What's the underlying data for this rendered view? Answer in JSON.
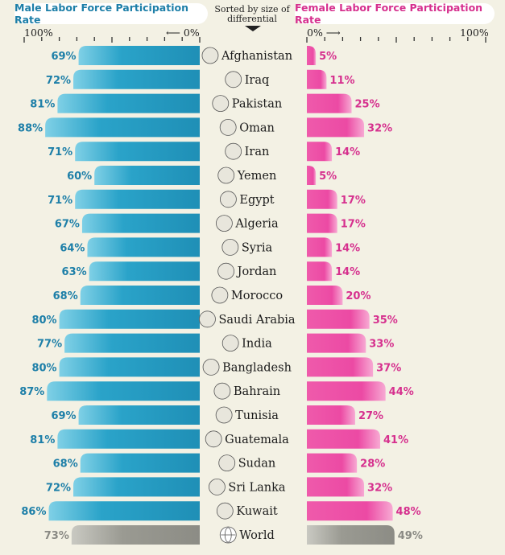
{
  "header": {
    "male_title": "Male Labor Force Participation Rate",
    "female_title": "Female Labor Force Participation Rate",
    "sort_note_line1": "Sorted by size of",
    "sort_note_line2": "differential"
  },
  "axes": {
    "male_max_label": "100%",
    "male_zero_label": "⟵ 0%",
    "female_zero_label": "0% ⟶",
    "female_max_label": "100%"
  },
  "colors": {
    "male_bar": "#2aa3c9",
    "male_bar_light": "#7fd0e6",
    "female_bar": "#ec4aa4",
    "female_bar_light": "#f7a9d3",
    "world_bar": "#9a9a92",
    "male_text": "#1d7fa8",
    "female_text": "#d6308e",
    "world_text": "#8a8a84"
  },
  "chart_data": {
    "type": "bar",
    "layout": "butterfly",
    "categories": [
      "Afghanistan",
      "Iraq",
      "Pakistan",
      "Oman",
      "Iran",
      "Yemen",
      "Egypt",
      "Algeria",
      "Syria",
      "Jordan",
      "Morocco",
      "Saudi Arabia",
      "India",
      "Bangladesh",
      "Bahrain",
      "Tunisia",
      "Guatemala",
      "Sudan",
      "Sri Lanka",
      "Kuwait",
      "World"
    ],
    "series": [
      {
        "name": "Male Labor Force Participation Rate",
        "values": [
          69,
          72,
          81,
          88,
          71,
          60,
          71,
          67,
          64,
          63,
          68,
          80,
          77,
          80,
          87,
          69,
          81,
          68,
          72,
          86,
          73
        ]
      },
      {
        "name": "Female Labor Force Participation Rate",
        "values": [
          5,
          11,
          25,
          32,
          14,
          5,
          17,
          17,
          14,
          14,
          20,
          35,
          33,
          37,
          44,
          27,
          41,
          28,
          32,
          48,
          49
        ]
      }
    ],
    "unit": "%",
    "xlim": [
      0,
      100
    ],
    "sort": "size of differential"
  }
}
